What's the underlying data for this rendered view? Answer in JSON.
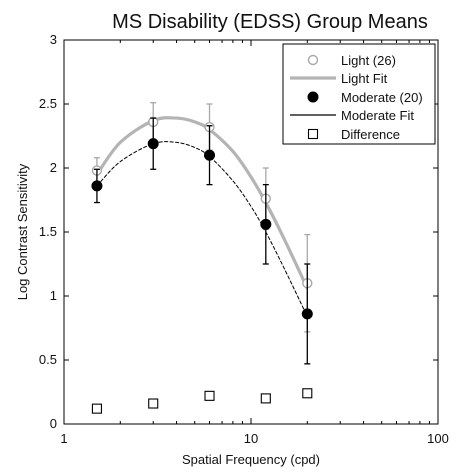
{
  "chart_data": {
    "type": "line",
    "title": "MS Disability (EDSS) Group Means",
    "xlabel": "Spatial Frequency (cpd)",
    "ylabel": "Log Contrast Sensitivity",
    "xscale": "log",
    "xlim": [
      1,
      100
    ],
    "ylim": [
      0,
      3
    ],
    "x_ticks": [
      1,
      10,
      100
    ],
    "x_tick_labels": [
      "1",
      "10",
      "100"
    ],
    "y_ticks": [
      0,
      0.5,
      1,
      1.5,
      2,
      2.5,
      3
    ],
    "y_tick_labels": [
      "0",
      "0.5",
      "1",
      "1.5",
      "2",
      "2.5",
      "3"
    ],
    "grid": false,
    "legend_position": "top-right",
    "series": [
      {
        "name": "Light (26)",
        "kind": "points",
        "marker": "open-circle",
        "color": "#a8a8a8",
        "x": [
          1.5,
          3,
          6,
          12,
          20
        ],
        "y": [
          1.98,
          2.36,
          2.32,
          1.76,
          1.1
        ],
        "err": [
          0.1,
          0.15,
          0.18,
          0.24,
          0.38
        ]
      },
      {
        "name": "Light Fit",
        "kind": "curve",
        "color": "#b4b4b4",
        "x": [
          1.5,
          2,
          3,
          4,
          5,
          6,
          8,
          10,
          12,
          15,
          20
        ],
        "y": [
          1.95,
          2.2,
          2.37,
          2.39,
          2.36,
          2.3,
          2.13,
          1.93,
          1.73,
          1.45,
          1.06
        ]
      },
      {
        "name": "Moderate (20)",
        "kind": "points",
        "marker": "filled-circle",
        "color": "#000000",
        "x": [
          1.5,
          3,
          6,
          12,
          20
        ],
        "y": [
          1.86,
          2.19,
          2.1,
          1.56,
          0.86
        ],
        "err": [
          0.13,
          0.2,
          0.23,
          0.31,
          0.39
        ]
      },
      {
        "name": "Moderate Fit",
        "kind": "curve",
        "color": "#000000",
        "x": [
          1.5,
          2,
          3,
          4,
          5,
          6,
          8,
          10,
          12,
          15,
          20
        ],
        "y": [
          1.86,
          2.05,
          2.19,
          2.2,
          2.16,
          2.09,
          1.9,
          1.7,
          1.5,
          1.22,
          0.84
        ]
      },
      {
        "name": "Difference",
        "kind": "points",
        "marker": "open-square",
        "color": "#000000",
        "x": [
          1.5,
          3,
          6,
          12,
          20
        ],
        "y": [
          0.12,
          0.16,
          0.22,
          0.2,
          0.24
        ]
      }
    ]
  }
}
